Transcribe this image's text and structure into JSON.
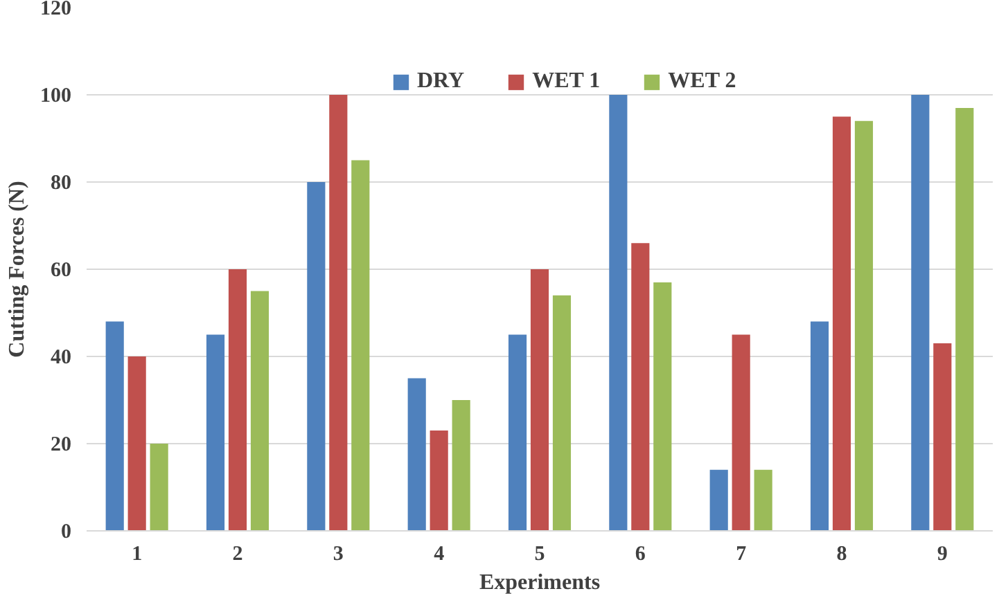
{
  "chart_data": {
    "type": "bar",
    "xlabel": "Experiments",
    "ylabel": "Cutting Forces (N)",
    "categories": [
      "1",
      "2",
      "3",
      "4",
      "5",
      "6",
      "7",
      "8",
      "9"
    ],
    "series": [
      {
        "name": "DRY",
        "color": "#4f81bd",
        "values": [
          48,
          45,
          80,
          35,
          45,
          100,
          14,
          48,
          100
        ]
      },
      {
        "name": "WET 1",
        "color": "#c0504d",
        "values": [
          40,
          60,
          100,
          23,
          60,
          66,
          45,
          95,
          43
        ]
      },
      {
        "name": "WET 2",
        "color": "#9bbb59",
        "values": [
          20,
          55,
          85,
          30,
          54,
          57,
          14,
          94,
          97
        ]
      }
    ],
    "ylim": [
      0,
      120
    ],
    "yticks": [
      0,
      20,
      40,
      60,
      80,
      100,
      120
    ],
    "grid": "y",
    "legend": "top"
  }
}
